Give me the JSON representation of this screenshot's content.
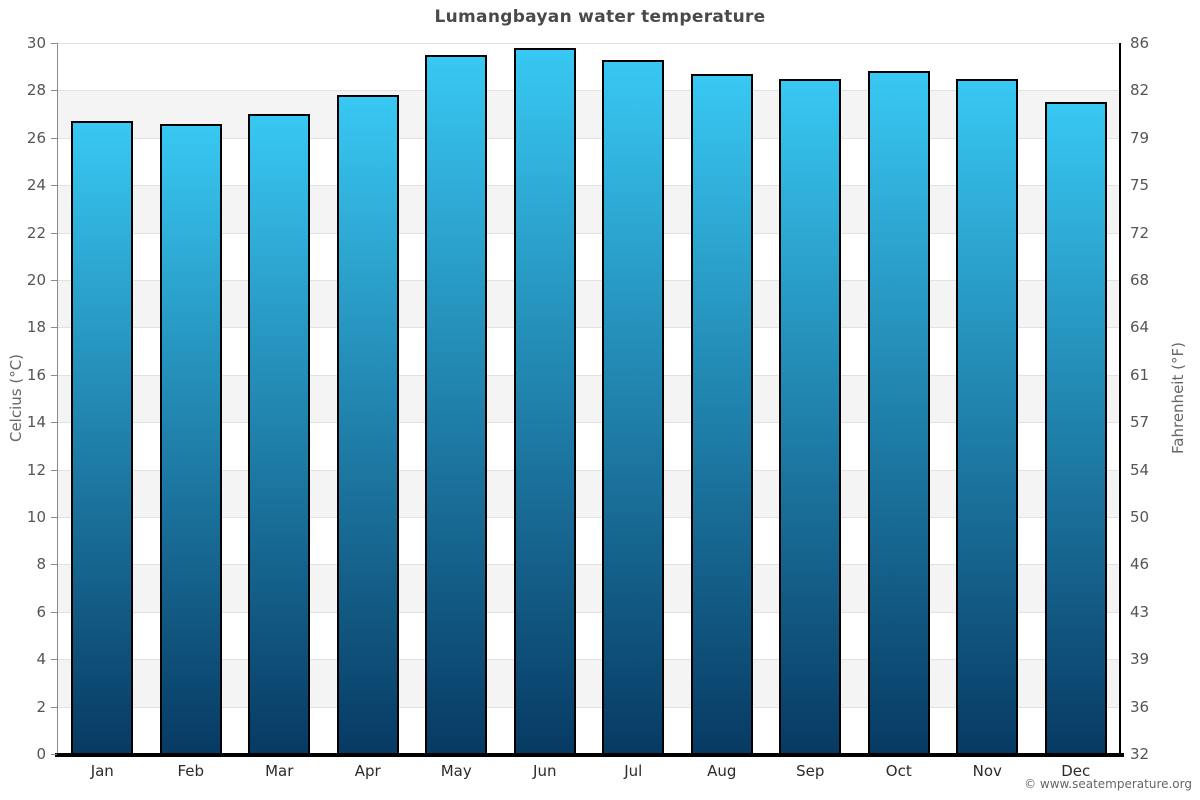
{
  "title": "Lumangbayan water temperature",
  "footer": {
    "copyright": "© www.seatemperature.org"
  },
  "chart_data": {
    "type": "bar",
    "title": "Lumangbayan water temperature",
    "categories": [
      "Jan",
      "Feb",
      "Mar",
      "Apr",
      "May",
      "Jun",
      "Jul",
      "Aug",
      "Sep",
      "Oct",
      "Nov",
      "Dec"
    ],
    "values": [
      26.7,
      26.6,
      27.0,
      27.8,
      29.5,
      29.8,
      29.3,
      28.7,
      28.5,
      28.8,
      28.5,
      27.5
    ],
    "series_name": "Water temperature",
    "xlabel": "",
    "ylabel_left": "Celcius (°C)",
    "ylabel_right": "Fahrenheit (°F)",
    "ylim_left": [
      0,
      30
    ],
    "yticks_left": [
      0,
      2,
      4,
      6,
      8,
      10,
      12,
      14,
      16,
      18,
      20,
      22,
      24,
      26,
      28,
      30
    ],
    "yticks_right_labels": [
      "32",
      "36",
      "39",
      "43",
      "46",
      "50",
      "54",
      "57",
      "61",
      "64",
      "68",
      "72",
      "75",
      "79",
      "82",
      "86"
    ],
    "legend": "none",
    "grid": "horizontal-bands",
    "colors": {
      "bar_gradient_top": "#38c8f3",
      "bar_gradient_bottom": "#073a63",
      "bar_border": "#000000",
      "band_alt": "#f4f4f4",
      "gridline": "#e2e2e2",
      "title_text": "#4a4a4a",
      "tick_text": "#555555",
      "axis_title_text": "#666666",
      "footer_text": "#666666"
    }
  }
}
